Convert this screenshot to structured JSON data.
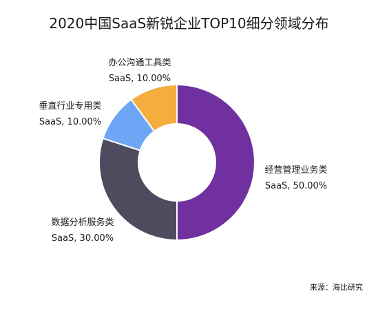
{
  "chart_data": {
    "type": "pie",
    "donut": true,
    "title": "2020中国SaaS新锐企业TOP10细分领域分布",
    "categories": [
      "经营管理业务类SaaS",
      "数据分析服务类SaaS",
      "垂直行业专用类SaaS",
      "办公沟通工具类SaaS"
    ],
    "values": [
      50.0,
      30.0,
      10.0,
      10.0
    ],
    "slices": [
      {
        "name": "经营管理业务类",
        "sub": "SaaS, 50.00%",
        "value": 50.0,
        "color": "#7030a0"
      },
      {
        "name": "数据分析服务类",
        "sub": "SaaS, 30.00%",
        "value": 30.0,
        "color": "#4d4b5e"
      },
      {
        "name": "垂直行业专用类",
        "sub": "SaaS, 10.00%",
        "value": 10.0,
        "color": "#6ea6f5"
      },
      {
        "name": "办公沟通工具类",
        "sub": "SaaS, 10.00%",
        "value": 10.0,
        "color": "#f5ae3e"
      }
    ],
    "legend": "none"
  },
  "source": "来源：海比研究"
}
